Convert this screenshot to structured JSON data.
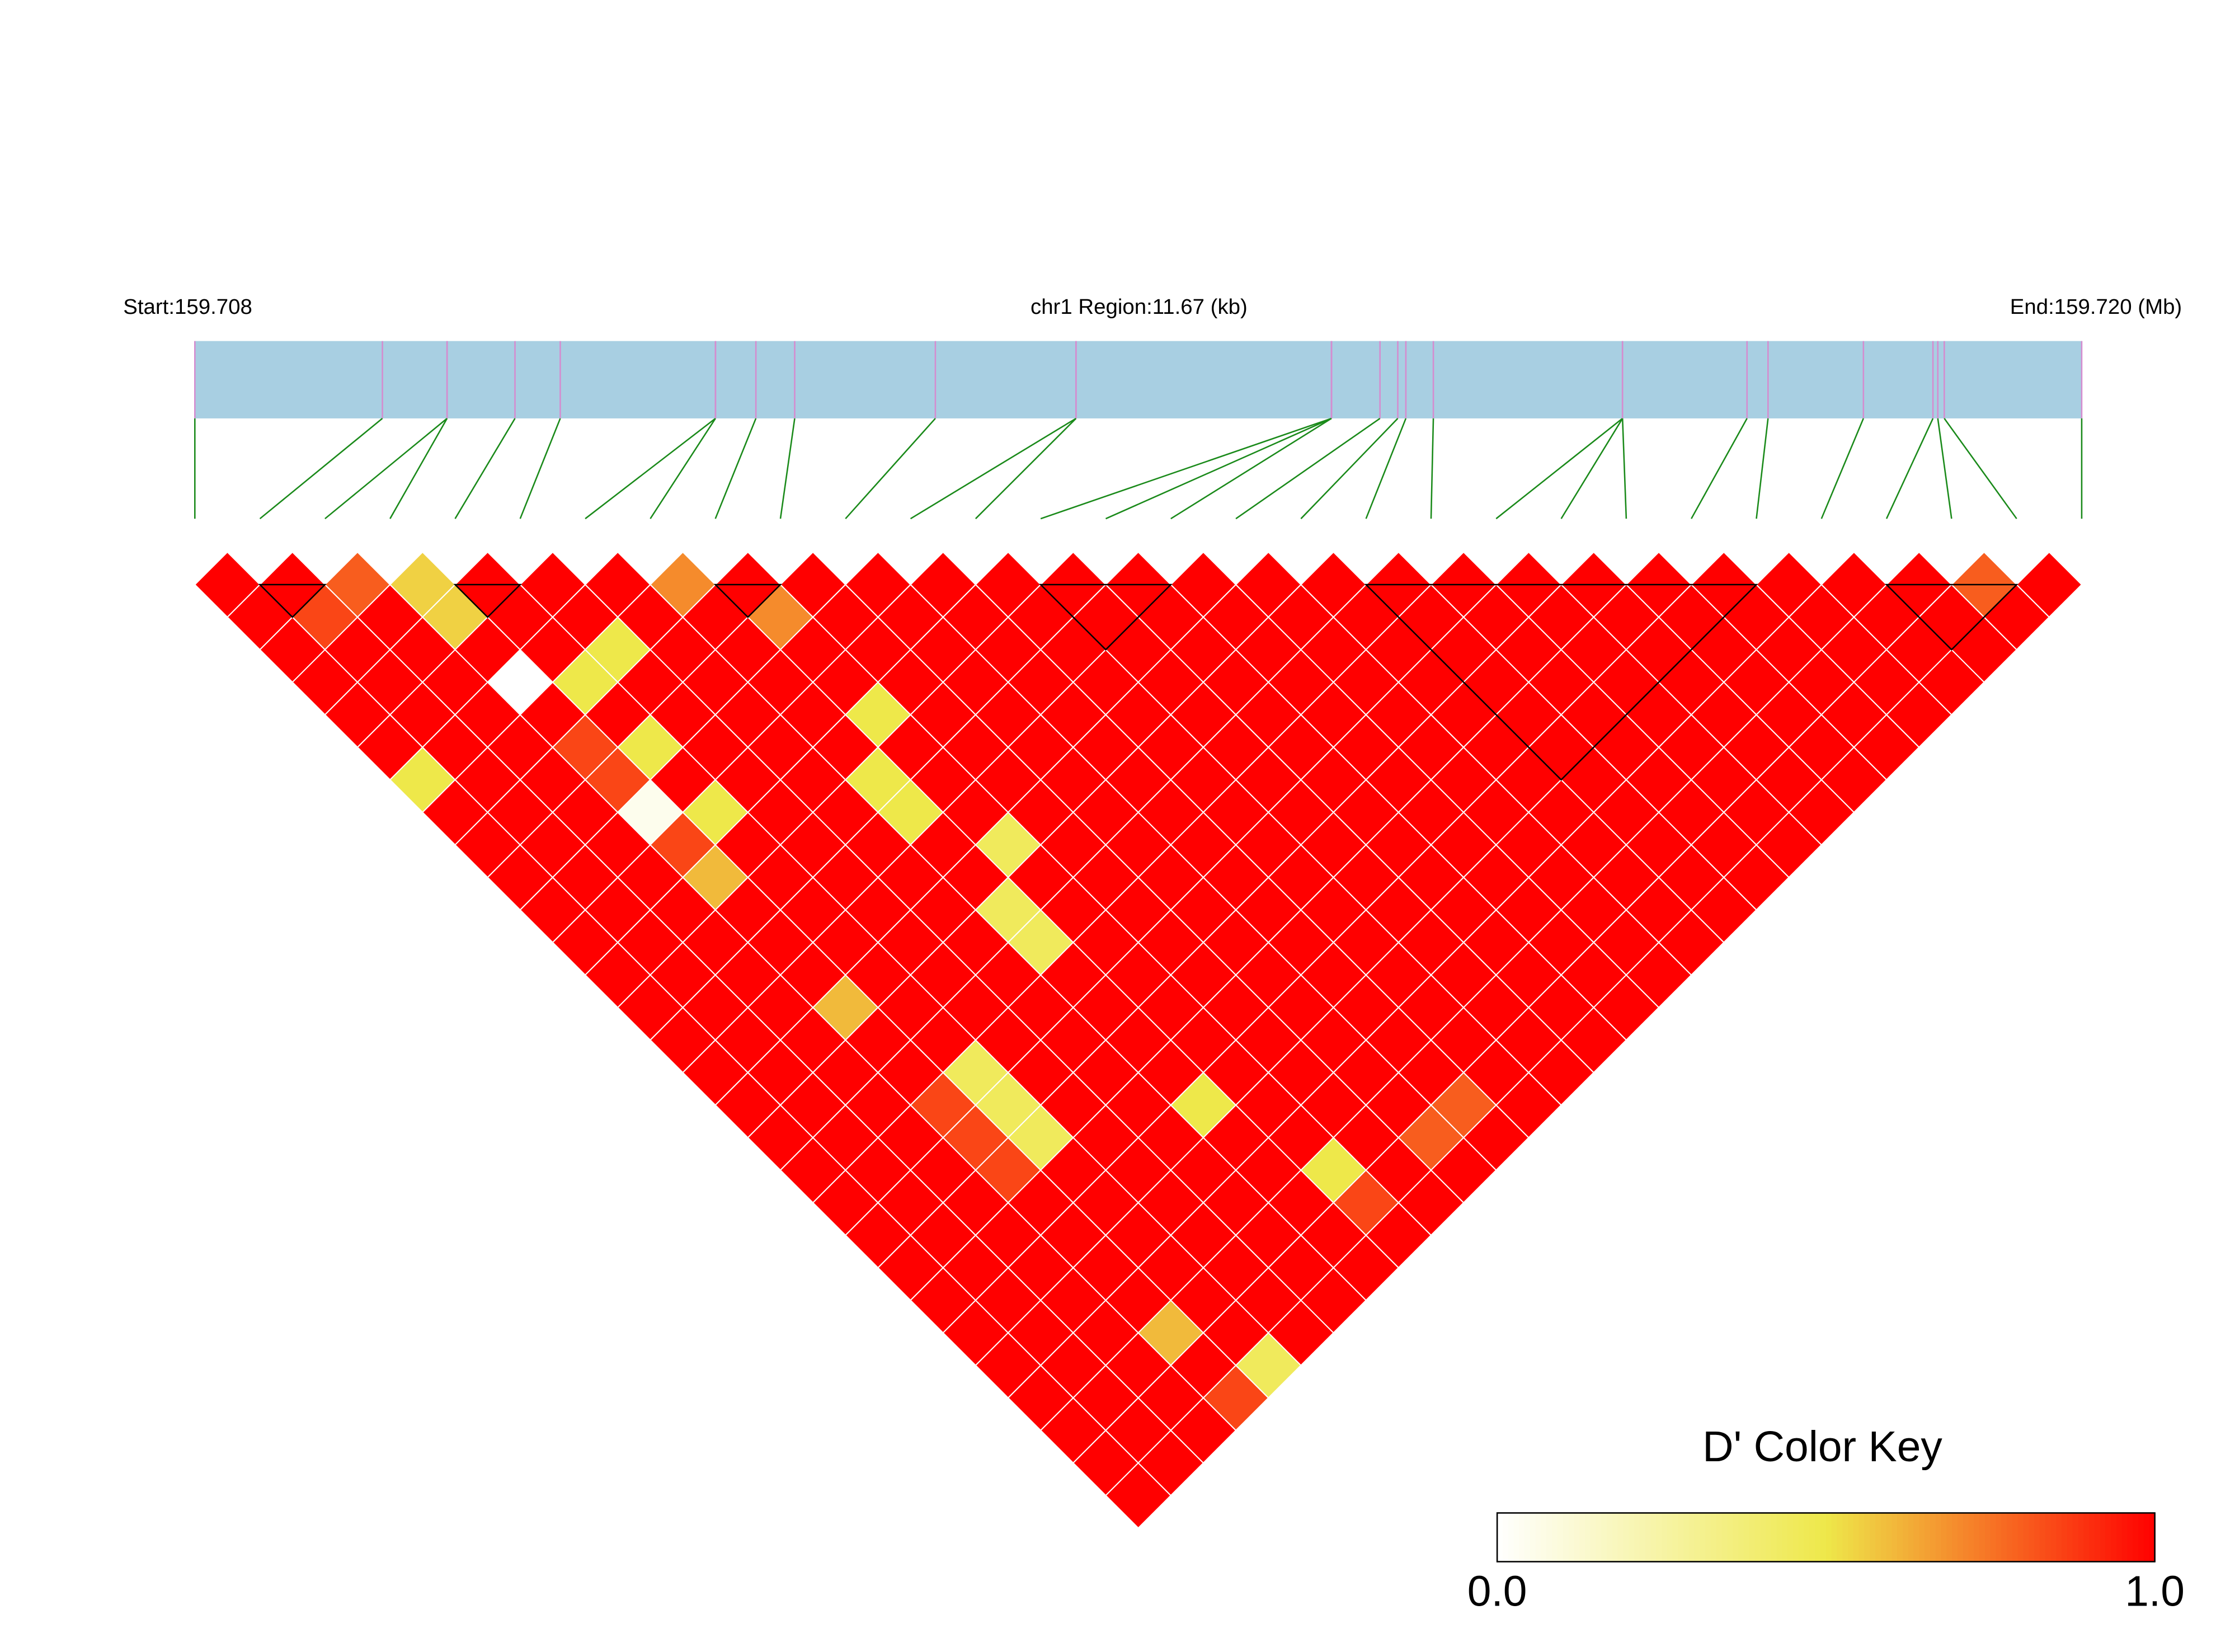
{
  "chart_data": {
    "type": "ld_heatmap",
    "start_label": "Start:159.708",
    "region_label": "chr1 Region:11.67 (kb)",
    "end_label": "End:159.720 (Mb)",
    "xlim": [
      0,
      11.67
    ],
    "snp_positions": [
      0,
      1.16,
      1.56,
      1.56,
      1.98,
      2.26,
      3.22,
      3.22,
      3.47,
      3.71,
      4.58,
      5.45,
      5.45,
      7.03,
      7.03,
      7.03,
      7.33,
      7.44,
      7.49,
      7.66,
      8.83,
      8.83,
      8.83,
      9.6,
      9.73,
      10.32,
      10.75,
      10.78,
      10.82,
      11.67
    ],
    "ld_matrix": [
      [
        1,
        1,
        1,
        1,
        1,
        1,
        0.5,
        1,
        1,
        1,
        1,
        1,
        1,
        1,
        1,
        1,
        1,
        1,
        1,
        1,
        1,
        1,
        1,
        1,
        1,
        1,
        1,
        1,
        1
      ],
      [
        1,
        0.85,
        1,
        1,
        1,
        1,
        1,
        1,
        1,
        1,
        1,
        1,
        1,
        1,
        1,
        1,
        1,
        1,
        1,
        1,
        1,
        1,
        1,
        1,
        1,
        1,
        1,
        1
      ],
      [
        0.8,
        1,
        1,
        1,
        1,
        1,
        1,
        1,
        1,
        1,
        1,
        1,
        1,
        1,
        1,
        1,
        1,
        1,
        1,
        1,
        1,
        1,
        1,
        1,
        1,
        1,
        1
      ],
      [
        0.55,
        0.55,
        1,
        0,
        1,
        0.85,
        0.85,
        0.05,
        0.85,
        0.6,
        1,
        1,
        1,
        0.6,
        1,
        1,
        0.85,
        0.85,
        0.85,
        1,
        1,
        1,
        1,
        0.6,
        1,
        0.85
      ],
      [
        1,
        1,
        1,
        0.5,
        1,
        0.5,
        1,
        0.5,
        1,
        1,
        1,
        1,
        1,
        1,
        1,
        0.45,
        0.45,
        0.45,
        1,
        1,
        1,
        1,
        1,
        1,
        0.45
      ],
      [
        1,
        1,
        0.5,
        1,
        1,
        1,
        1,
        1,
        1,
        1,
        1,
        1,
        1,
        1,
        1,
        1,
        1,
        1,
        1,
        1,
        1,
        1,
        1,
        1
      ],
      [
        1,
        1,
        1,
        1,
        1,
        1,
        1,
        1,
        1,
        1,
        1,
        1,
        1,
        1,
        1,
        1,
        1,
        1,
        1,
        1,
        1,
        1,
        1
      ],
      [
        0.7,
        1,
        1,
        1,
        1,
        1,
        0.5,
        0.5,
        1,
        1,
        0.45,
        0.45,
        1,
        1,
        1,
        1,
        0.5,
        1,
        1,
        1,
        1,
        1
      ],
      [
        1,
        0.7,
        1,
        1,
        0.5,
        1,
        1,
        1,
        0.45,
        1,
        1,
        1,
        1,
        1,
        1,
        1,
        1,
        1,
        0.5,
        0.85,
        1
      ],
      [
        1,
        1,
        1,
        1,
        1,
        1,
        1,
        1,
        1,
        1,
        1,
        1,
        1,
        1,
        1,
        1,
        1,
        1,
        1,
        1
      ],
      [
        1,
        1,
        1,
        1,
        1,
        1,
        1,
        1,
        1,
        1,
        1,
        1,
        1,
        1,
        1,
        1,
        1,
        0.8,
        1
      ],
      [
        1,
        1,
        1,
        1,
        1,
        1,
        1,
        1,
        1,
        1,
        1,
        1,
        1,
        1,
        1,
        1,
        0.8,
        1
      ],
      [
        1,
        1,
        1,
        1,
        1,
        1,
        1,
        1,
        1,
        1,
        1,
        1,
        1,
        1,
        1,
        1,
        1
      ],
      [
        1,
        1,
        1,
        1,
        1,
        1,
        1,
        1,
        1,
        1,
        1,
        1,
        1,
        1,
        1,
        1
      ],
      [
        1,
        1,
        1,
        1,
        1,
        1,
        1,
        1,
        1,
        1,
        1,
        1,
        1,
        1,
        1
      ],
      [
        1,
        1,
        1,
        1,
        1,
        1,
        1,
        1,
        1,
        1,
        1,
        1,
        1,
        1
      ],
      [
        1,
        1,
        1,
        1,
        1,
        1,
        1,
        1,
        1,
        1,
        1,
        1,
        1
      ],
      [
        1,
        1,
        1,
        1,
        1,
        1,
        1,
        1,
        1,
        1,
        1,
        1
      ],
      [
        1,
        1,
        1,
        1,
        1,
        1,
        1,
        1,
        1,
        1,
        1
      ],
      [
        1,
        1,
        1,
        1,
        1,
        1,
        1,
        1,
        1,
        1
      ],
      [
        1,
        1,
        1,
        1,
        1,
        1,
        1,
        1,
        1
      ],
      [
        1,
        1,
        1,
        1,
        1,
        1,
        1,
        1
      ],
      [
        1,
        1,
        1,
        1,
        1,
        1,
        1
      ],
      [
        1,
        1,
        1,
        1,
        1,
        1
      ],
      [
        1,
        1,
        1,
        1,
        1
      ],
      [
        1,
        1,
        1,
        1
      ],
      [
        1,
        1,
        1
      ],
      [
        0.8,
        1
      ],
      [
        1
      ]
    ],
    "blocks": [
      [
        1,
        2
      ],
      [
        4,
        5
      ],
      [
        8,
        9
      ],
      [
        13,
        15
      ],
      [
        18,
        24
      ],
      [
        26,
        28
      ]
    ],
    "color_stops": [
      {
        "value": 0,
        "color": "#ffffff"
      },
      {
        "value": 0.5,
        "color": "#eee84a"
      },
      {
        "value": 1,
        "color": "#ff0000"
      }
    ],
    "key_title": "D' Color Key",
    "key_ticks": [
      {
        "value": 0,
        "label": "0.0"
      },
      {
        "value": 1,
        "label": "1.0"
      }
    ]
  }
}
